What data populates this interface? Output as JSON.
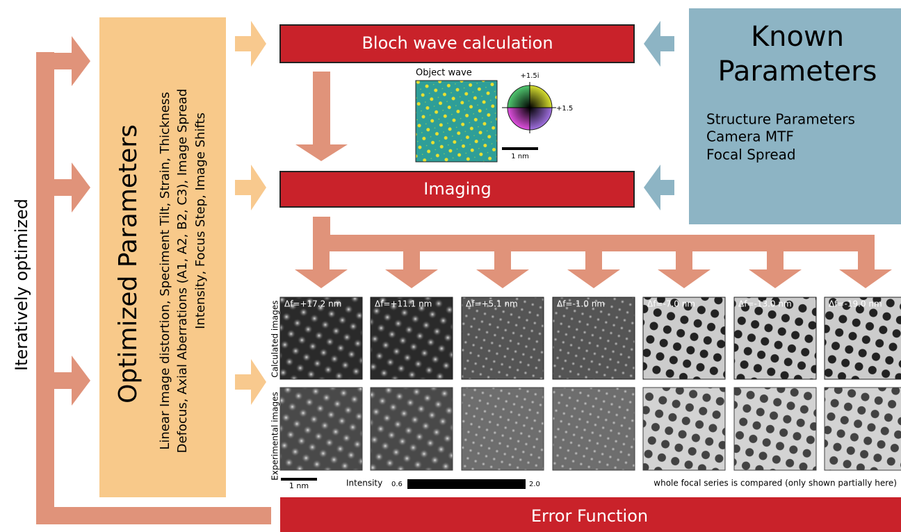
{
  "feedback_label": "Iteratively optimized",
  "optimized": {
    "title": "Optimized Parameters",
    "lines": [
      "Linear Image distortion, Speciment Tilt, Strain, Thickness",
      "Defocus, Axial Aberrations (A1, A2, B2, C3), Image Spread",
      "Intensity, Focus Step, Image Shifts"
    ]
  },
  "bloch": "Bloch wave calculation",
  "object_wave": {
    "title": "Object wave",
    "imag_label": "+1.5i",
    "real_label": "+1.5",
    "scale": "1 nm"
  },
  "known": {
    "title": [
      "Known",
      "Parameters"
    ],
    "items": [
      "Structure Parameters",
      "Camera MTF",
      "Focal Spread"
    ]
  },
  "imaging": "Imaging",
  "series": {
    "defocus": [
      "Δf=+17.2 nm",
      "Δf=+11.1 nm",
      "Δf=+5.1 nm",
      "Δf=-1.0 nm",
      "Δf=-7.0 nm",
      "Δf=-13.0 nm",
      "Δf=-19.0 nm"
    ],
    "row_labels": [
      "Calculated images",
      "Experimental images"
    ],
    "scale": "1 nm",
    "intensity_label": "Intensity",
    "intensity_min": "0.6",
    "intensity_max": "2.0",
    "note": "whole focal series is compared (only shown partially here)"
  },
  "error": "Error Function"
}
